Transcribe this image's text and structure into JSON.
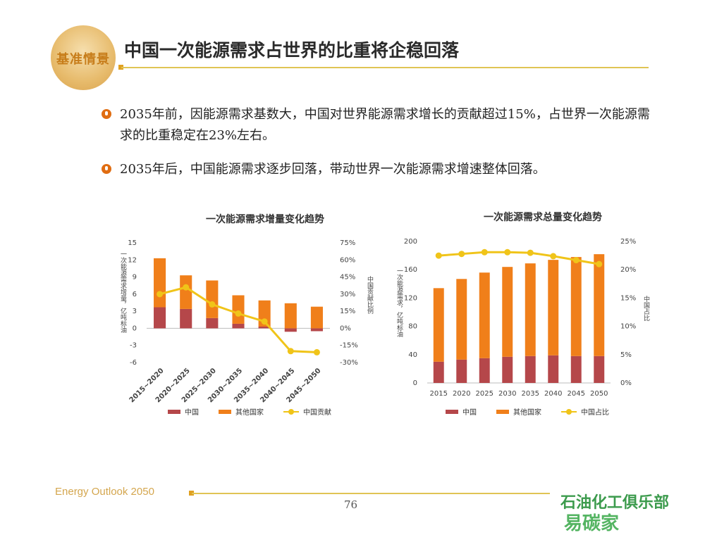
{
  "header": {
    "logo_small": "",
    "logo_text": "基准情景",
    "title": "中国一次能源需求占世界的比重将企稳回落"
  },
  "bullets": [
    "2035年前，因能源需求基数大，中国对世界能源需求增长的贡献超过15%，占世界一次能源需求的比重稳定在23%左右。",
    "2035年后，中国能源需求逐步回落，带动世界一次能源需求增速整体回落。"
  ],
  "colors": {
    "china": "#b5474a",
    "others": "#f07f1a",
    "line": "#f0c419",
    "accent": "#e0a020"
  },
  "chart_data": [
    {
      "type": "bar",
      "stacked": true,
      "title": "一次能源需求增量变化趋势",
      "categories": [
        "2015~2020",
        "2020~2025",
        "2025~2030",
        "2030~2035",
        "2035~2040",
        "2040~2045",
        "2045~2050"
      ],
      "ylabel": "一次能源需求增量，亿吨标油",
      "y2label": "中国贡献比例",
      "ylim": [
        -6,
        15
      ],
      "yticks": [
        "15",
        "12",
        "9",
        "6",
        "3",
        "0",
        "-3",
        "-6"
      ],
      "y2lim": [
        -30,
        75
      ],
      "y2ticks": [
        "75%",
        "60%",
        "45%",
        "30%",
        "15%",
        "0%",
        "-15%",
        "-30%"
      ],
      "series": [
        {
          "name": "中国",
          "values": [
            3.7,
            3.4,
            1.8,
            0.8,
            0.3,
            -0.6,
            -0.5
          ]
        },
        {
          "name": "其他国家",
          "values": [
            8.6,
            5.9,
            6.6,
            5.0,
            4.6,
            4.4,
            3.8
          ]
        },
        {
          "name": "中国贡献",
          "axis": "right",
          "values": [
            30,
            36,
            21,
            13,
            6,
            -20,
            -21
          ]
        }
      ]
    },
    {
      "type": "bar",
      "stacked": true,
      "title": "一次能源需求总量变化趋势",
      "categories": [
        "2015",
        "2020",
        "2025",
        "2030",
        "2035",
        "2040",
        "2045",
        "2050"
      ],
      "ylabel": "一次能源需求，亿吨标油",
      "y2label": "中国占比",
      "ylim": [
        0,
        200
      ],
      "yticks": [
        "200",
        "160",
        "120",
        "80",
        "40",
        "0"
      ],
      "y2lim": [
        0,
        25
      ],
      "y2ticks": [
        "25%",
        "20%",
        "15%",
        "10%",
        "5%",
        "0%"
      ],
      "series": [
        {
          "name": "中国",
          "values": [
            30,
            33,
            35,
            37,
            38,
            39,
            38,
            38
          ]
        },
        {
          "name": "其他国家",
          "values": [
            104,
            114,
            121,
            127,
            131,
            135,
            140,
            144
          ]
        },
        {
          "name": "中国占比",
          "axis": "right",
          "values": [
            22.5,
            22.8,
            23.1,
            23.1,
            23.0,
            22.4,
            21.7,
            21.0
          ]
        }
      ]
    }
  ],
  "footer": {
    "brand": "Energy Outlook 2050",
    "page": "76",
    "watermark": "石油化工俱乐部",
    "watermark2": "易碳家"
  }
}
